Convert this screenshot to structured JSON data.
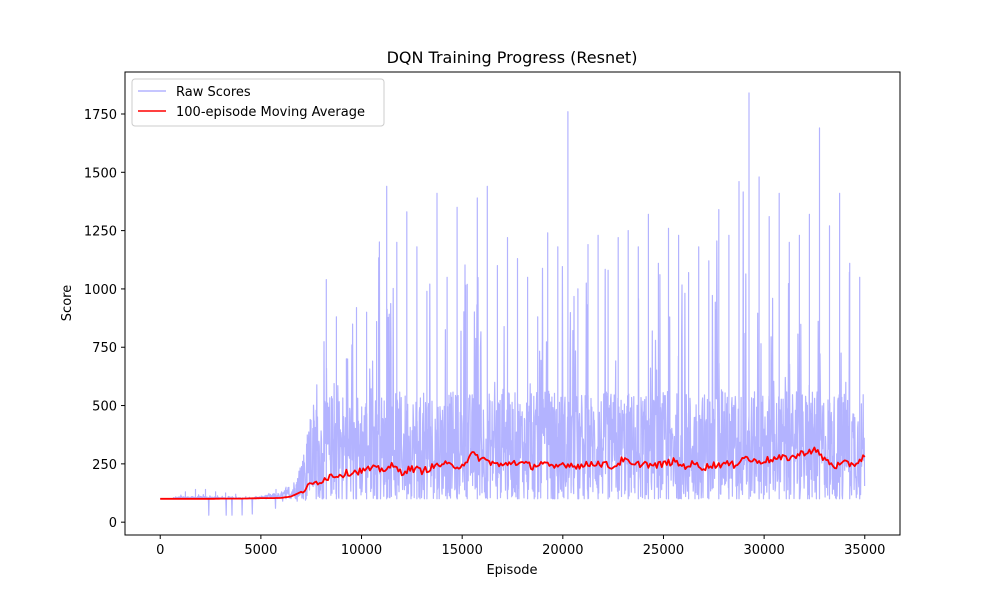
{
  "chart_data": {
    "type": "line",
    "title": "DQN Training Progress (Resnet)",
    "xlabel": "Episode",
    "ylabel": "Score",
    "xlim": [
      -1750,
      36750
    ],
    "ylim": [
      -55,
      1930
    ],
    "x_ticks": [
      0,
      5000,
      10000,
      15000,
      20000,
      25000,
      30000,
      35000
    ],
    "x_tick_labels": [
      "0",
      "5000",
      "10000",
      "15000",
      "20000",
      "25000",
      "30000",
      "35000"
    ],
    "y_ticks": [
      0,
      250,
      500,
      750,
      1000,
      1250,
      1500,
      1750
    ],
    "y_tick_labels": [
      "0",
      "250",
      "500",
      "750",
      "1000",
      "1250",
      "1500",
      "1750"
    ],
    "grid": false,
    "legend_position": "top-left",
    "series": [
      {
        "name": "Raw Scores",
        "color": "#b3b3ff",
        "x_step": 500,
        "x_start": 0,
        "min": [
          100,
          100,
          100,
          100,
          30,
          30,
          30,
          30,
          30,
          35,
          35,
          35,
          90,
          90,
          90,
          100,
          100,
          100,
          100,
          100,
          100,
          100,
          100,
          100,
          100,
          100,
          100,
          100,
          100,
          100,
          100,
          100,
          100,
          100,
          100,
          100,
          100,
          100,
          100,
          100,
          100,
          100,
          100,
          100,
          100,
          100,
          100,
          100,
          100,
          100,
          100,
          100,
          100,
          100,
          100,
          100,
          100,
          100,
          100,
          100,
          100,
          100,
          100,
          100,
          100,
          100,
          100,
          100,
          100,
          100,
          100
        ],
        "max": [
          100,
          100,
          130,
          140,
          140,
          130,
          125,
          120,
          110,
          110,
          115,
          140,
          150,
          160,
          210,
          480,
          1040,
          880,
          700,
          920,
          900,
          860,
          1440,
          1200,
          1330,
          1180,
          990,
          1410,
          1050,
          1350,
          1020,
          1390,
          1440,
          1100,
          1220,
          1130,
          1050,
          880,
          1240,
          1180,
          1760,
          1000,
          1190,
          1230,
          1080,
          1220,
          1250,
          1180,
          1320,
          1110,
          1260,
          1230,
          1070,
          1180,
          1120,
          1340,
          1230,
          1460,
          1840,
          1480,
          1310,
          1410,
          1200,
          1230,
          1320,
          1690,
          1270,
          1410,
          1110,
          1050,
          900
        ],
        "typical_upper": [
          100,
          100,
          110,
          110,
          110,
          110,
          105,
          105,
          105,
          105,
          110,
          120,
          130,
          150,
          250,
          450,
          500,
          560,
          560,
          560,
          560,
          560,
          560,
          560,
          560,
          560,
          560,
          560,
          560,
          560,
          560,
          560,
          560,
          560,
          560,
          560,
          560,
          560,
          560,
          560,
          560,
          560,
          560,
          560,
          560,
          560,
          560,
          560,
          560,
          560,
          560,
          560,
          560,
          560,
          560,
          560,
          560,
          560,
          560,
          560,
          560,
          560,
          560,
          560,
          560,
          560,
          560,
          560,
          560,
          560,
          560
        ]
      },
      {
        "name": "100-episode Moving Average",
        "color": "#ff0000",
        "x_step": 500,
        "x_start": 0,
        "values": [
          100,
          100,
          100,
          100,
          100,
          100,
          101,
          101,
          101,
          102,
          103,
          103,
          104,
          110,
          130,
          160,
          180,
          200,
          205,
          215,
          220,
          230,
          225,
          240,
          215,
          230,
          220,
          235,
          250,
          240,
          245,
          290,
          270,
          255,
          240,
          260,
          250,
          240,
          255,
          230,
          250,
          245,
          240,
          255,
          250,
          235,
          270,
          240,
          255,
          240,
          250,
          260,
          240,
          250,
          235,
          245,
          250,
          245,
          280,
          260,
          265,
          270,
          275,
          280,
          300,
          310,
          270,
          240,
          250,
          250,
          280
        ]
      }
    ]
  }
}
